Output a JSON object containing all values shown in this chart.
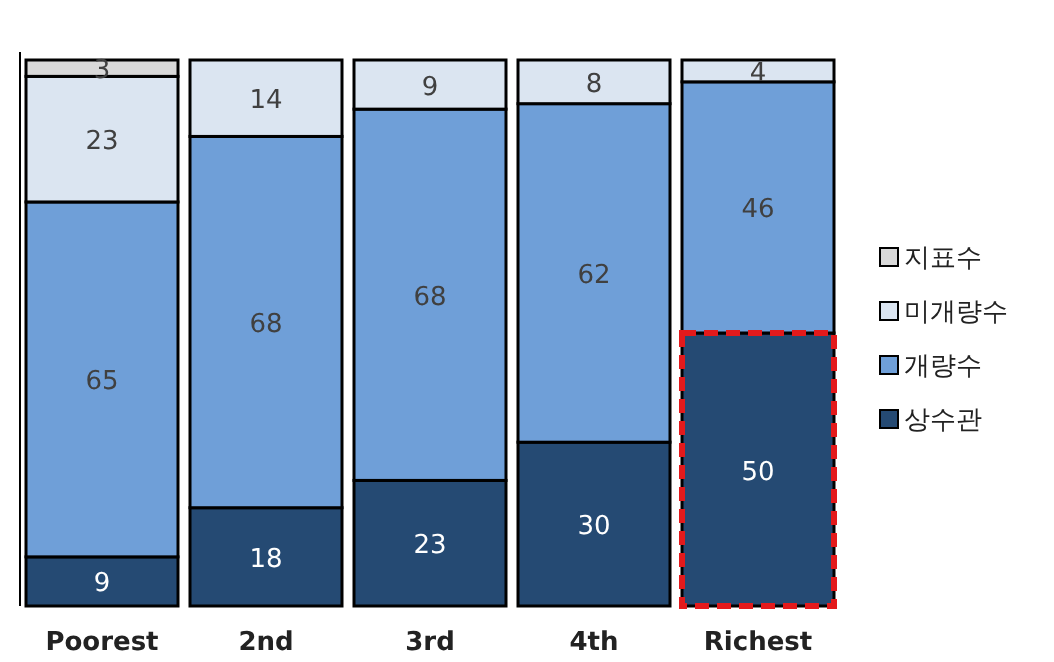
{
  "chart_data": {
    "type": "bar",
    "stacked": true,
    "data_labels": true,
    "legend": "right",
    "categories": [
      "Poorest",
      "2nd",
      "3rd",
      "4th",
      "Richest"
    ],
    "series": [
      {
        "name": "상수관",
        "color": "#254a73",
        "values": [
          9,
          18,
          23,
          30,
          50
        ]
      },
      {
        "name": "개량수",
        "color": "#6f9fd8",
        "values": [
          65,
          68,
          68,
          62,
          46
        ]
      },
      {
        "name": "미개량수",
        "color": "#dbe5f1",
        "values": [
          23,
          14,
          9,
          8,
          4
        ]
      },
      {
        "name": "지표수",
        "color": "#d9d9d9",
        "values": [
          3,
          null,
          null,
          null,
          null
        ]
      }
    ]
  }
}
